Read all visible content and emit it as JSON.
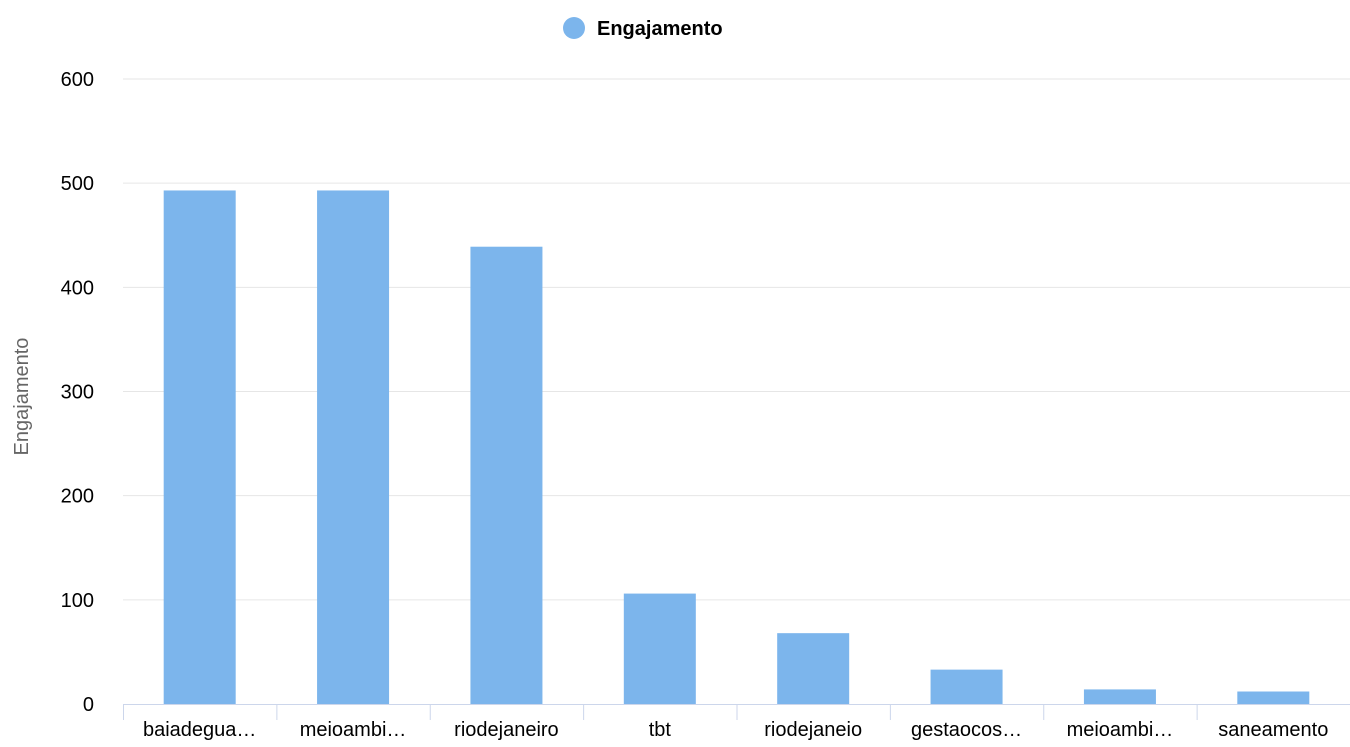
{
  "chart_data": {
    "type": "bar",
    "categories": [
      "baiadegua…",
      "meioambi…",
      "riodejaneiro",
      "tbt",
      "riodejaneio",
      "gestaocos…",
      "meioambi…",
      "saneamento"
    ],
    "series": [
      {
        "name": "Engajamento",
        "values": [
          493,
          493,
          439,
          106,
          68,
          33,
          14,
          12
        ],
        "color": "#7cb5ec"
      }
    ],
    "ylabel": "Engajamento",
    "xlabel": "",
    "ylim": [
      0,
      600
    ],
    "yticks": [
      0,
      100,
      200,
      300,
      400,
      500,
      600
    ],
    "grid": true,
    "legend_position": "top-center"
  }
}
